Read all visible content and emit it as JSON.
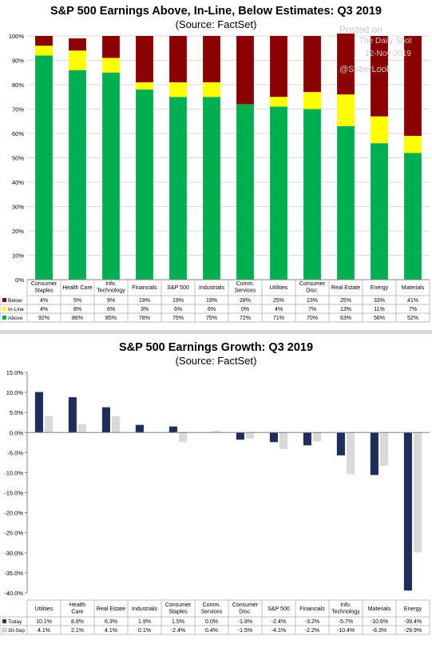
{
  "watermark": {
    "line1": "Posted on",
    "line2": "The Daily Shot",
    "line3": "12-Nov-2019",
    "line4": "@SoberLook"
  },
  "chart_data": [
    {
      "type": "bar",
      "stacked": true,
      "title": "S&P 500 Earnings Above, In-Line, Below Estimates: Q3 2019",
      "subtitle": "(Source: FactSet)",
      "ylim": [
        0,
        100
      ],
      "yticks": [
        "0%",
        "10%",
        "20%",
        "30%",
        "40%",
        "50%",
        "60%",
        "70%",
        "80%",
        "90%",
        "100%"
      ],
      "categories": [
        [
          "Consumer",
          "Staples"
        ],
        [
          "Health Care"
        ],
        [
          "Info.",
          "Technology"
        ],
        [
          "Financials"
        ],
        [
          "S&P 500"
        ],
        [
          "Industrials"
        ],
        [
          "Comm.",
          "Services"
        ],
        [
          "Utilities"
        ],
        [
          "Consumer",
          "Disc."
        ],
        [
          "Real Estate"
        ],
        [
          "Energy"
        ],
        [
          "Materials"
        ]
      ],
      "series": [
        {
          "name": "Below",
          "color": "#8b0000",
          "values": [
            4,
            5,
            9,
            19,
            19,
            19,
            28,
            25,
            23,
            25,
            33,
            41
          ],
          "labels": [
            "4%",
            "5%",
            "9%",
            "19%",
            "19%",
            "19%",
            "28%",
            "25%",
            "23%",
            "25%",
            "33%",
            "41%"
          ]
        },
        {
          "name": "In-Line",
          "color": "#ffff00",
          "values": [
            4,
            8,
            6,
            3,
            6,
            6,
            0,
            4,
            7,
            13,
            11,
            7
          ],
          "labels": [
            "4%",
            "8%",
            "6%",
            "3%",
            "6%",
            "6%",
            "0%",
            "4%",
            "7%",
            "13%",
            "11%",
            "7%"
          ]
        },
        {
          "name": "Above",
          "color": "#00b050",
          "values": [
            92,
            86,
            85,
            78,
            75,
            75,
            72,
            71,
            70,
            63,
            56,
            52
          ],
          "labels": [
            "92%",
            "86%",
            "85%",
            "78%",
            "75%",
            "75%",
            "72%",
            "71%",
            "70%",
            "63%",
            "56%",
            "52%"
          ]
        }
      ],
      "grid": true
    },
    {
      "type": "bar",
      "title": "S&P 500 Earnings Growth: Q3 2019",
      "subtitle": "(Source: FactSet)",
      "ylim": [
        -40,
        15
      ],
      "yticks": [
        "-40.0%",
        "-35.0%",
        "-30.0%",
        "-25.0%",
        "-20.0%",
        "-15.0%",
        "-10.0%",
        "-5.0%",
        "0.0%",
        "5.0%",
        "10.0%",
        "15.0%"
      ],
      "categories": [
        [
          "Utilities"
        ],
        [
          "Health",
          "Care"
        ],
        [
          "Real Estate"
        ],
        [
          "Industrials"
        ],
        [
          "Consumer",
          "Staples"
        ],
        [
          "Comm.",
          "Services"
        ],
        [
          "Consumer",
          "Disc."
        ],
        [
          "S&P 500"
        ],
        [
          "Financials"
        ],
        [
          "Info.",
          "Technology"
        ],
        [
          "Materials"
        ],
        [
          "Energy"
        ]
      ],
      "series": [
        {
          "name": "Today",
          "color": "#1f2d5c",
          "values": [
            10.1,
            8.8,
            6.3,
            1.9,
            1.5,
            0.0,
            -1.8,
            -2.4,
            -3.2,
            -5.7,
            -10.6,
            -39.4
          ],
          "labels": [
            "10.1%",
            "8.8%",
            "6.3%",
            "1.9%",
            "1.5%",
            "0.0%",
            "-1.8%",
            "-2.4%",
            "-3.2%",
            "-5.7%",
            "-10.6%",
            "-39.4%"
          ]
        },
        {
          "name": "30-Sep",
          "color": "#d9d9d9",
          "values": [
            4.1,
            2.1,
            4.1,
            0.1,
            -2.4,
            0.4,
            -1.5,
            -4.1,
            -2.2,
            -10.4,
            -8.3,
            -29.9
          ],
          "labels": [
            "4.1%",
            "2.1%",
            "4.1%",
            "0.1%",
            "-2.4%",
            "0.4%",
            "-1.5%",
            "-4.1%",
            "-2.2%",
            "-10.4%",
            "-8.3%",
            "-29.9%"
          ]
        }
      ],
      "grid": false
    }
  ]
}
